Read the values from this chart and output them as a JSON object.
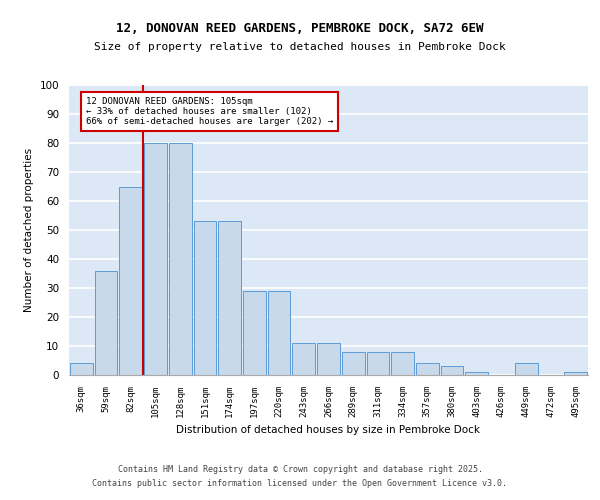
{
  "title1": "12, DONOVAN REED GARDENS, PEMBROKE DOCK, SA72 6EW",
  "title2": "Size of property relative to detached houses in Pembroke Dock",
  "xlabel": "Distribution of detached houses by size in Pembroke Dock",
  "ylabel": "Number of detached properties",
  "categories": [
    "36sqm",
    "59sqm",
    "82sqm",
    "105sqm",
    "128sqm",
    "151sqm",
    "174sqm",
    "197sqm",
    "220sqm",
    "243sqm",
    "266sqm",
    "289sqm",
    "311sqm",
    "334sqm",
    "357sqm",
    "380sqm",
    "403sqm",
    "426sqm",
    "449sqm",
    "472sqm",
    "495sqm"
  ],
  "values": [
    4,
    36,
    65,
    80,
    80,
    53,
    53,
    29,
    29,
    11,
    11,
    8,
    8,
    8,
    4,
    3,
    1,
    0,
    4,
    0,
    1
  ],
  "bar_color": "#c8d9eb",
  "bar_edgecolor": "#5b9bd5",
  "background_color": "#dce8f5",
  "grid_color": "#ffffff",
  "vline_color": "#cc0000",
  "annotation_text": "12 DONOVAN REED GARDENS: 105sqm\n← 33% of detached houses are smaller (102)\n66% of semi-detached houses are larger (202) →",
  "annotation_box_facecolor": "#ffffff",
  "annotation_box_edgecolor": "#cc0000",
  "footer": "Contains HM Land Registry data © Crown copyright and database right 2025.\nContains public sector information licensed under the Open Government Licence v3.0.",
  "ylim": [
    0,
    100
  ],
  "yticks": [
    0,
    10,
    20,
    30,
    40,
    50,
    60,
    70,
    80,
    90,
    100
  ]
}
